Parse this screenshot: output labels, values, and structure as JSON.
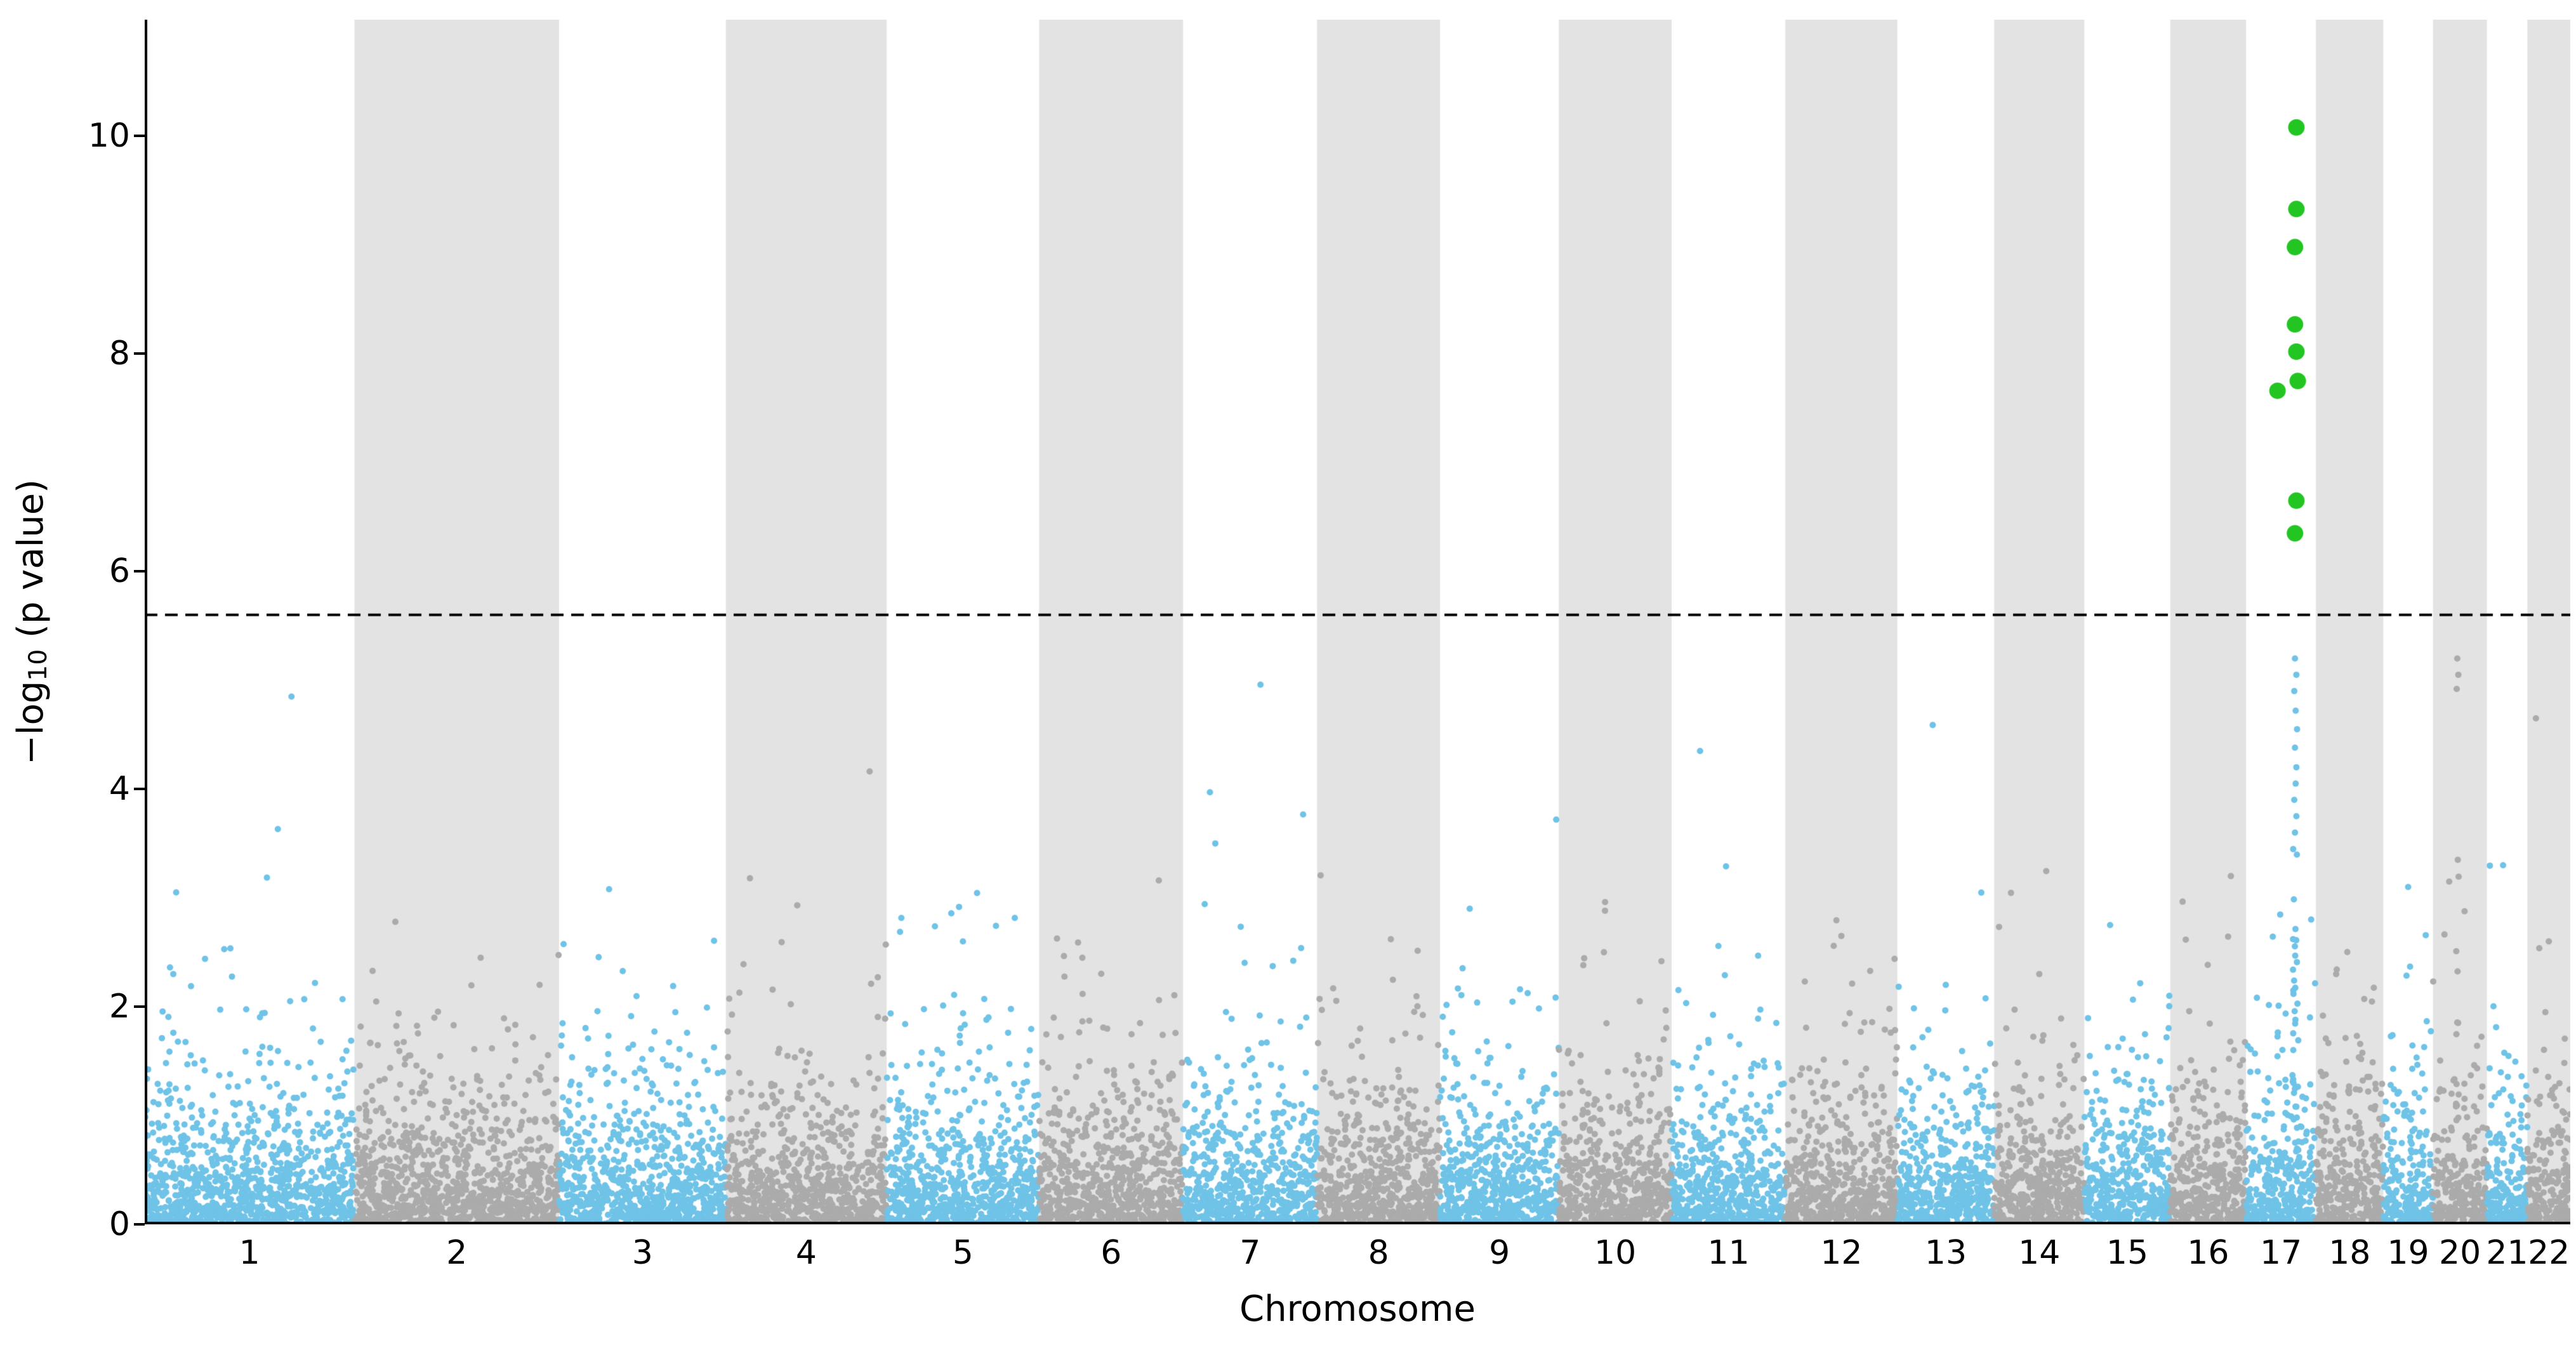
{
  "figure": {
    "xlabel": "Chromosome",
    "ylabel_prefix": "−log",
    "ylabel_sub": "10",
    "ylabel_suffix": " (p value)"
  },
  "chart_data": {
    "type": "scatter",
    "subtype": "manhattan",
    "title": "",
    "xlabel": "Chromosome",
    "ylabel": "-log10 (p value)",
    "ylim": [
      0,
      11.07
    ],
    "yticks": [
      0,
      2,
      4,
      6,
      8,
      10
    ],
    "grid": false,
    "legend": "none",
    "significance_threshold": 5.6,
    "threshold_line_style": "dashed",
    "colors": {
      "odd_chromosome_points": "#6fc3e7",
      "even_chromosome_points": "#ababab",
      "significant_points": "#22c522",
      "background_band": "#e3e3e3",
      "threshold_line": "#000000",
      "axis": "#000000"
    },
    "chromosomes": [
      {
        "label": "1",
        "size_mb": 249
      },
      {
        "label": "2",
        "size_mb": 243
      },
      {
        "label": "3",
        "size_mb": 198
      },
      {
        "label": "4",
        "size_mb": 191
      },
      {
        "label": "5",
        "size_mb": 181
      },
      {
        "label": "6",
        "size_mb": 171
      },
      {
        "label": "7",
        "size_mb": 159
      },
      {
        "label": "8",
        "size_mb": 146
      },
      {
        "label": "9",
        "size_mb": 141
      },
      {
        "label": "10",
        "size_mb": 134
      },
      {
        "label": "11",
        "size_mb": 135
      },
      {
        "label": "12",
        "size_mb": 133
      },
      {
        "label": "13",
        "size_mb": 115
      },
      {
        "label": "14",
        "size_mb": 107
      },
      {
        "label": "15",
        "size_mb": 102
      },
      {
        "label": "16",
        "size_mb": 90
      },
      {
        "label": "17",
        "size_mb": 83
      },
      {
        "label": "18",
        "size_mb": 80
      },
      {
        "label": "19",
        "size_mb": 59
      },
      {
        "label": "20",
        "size_mb": 64
      },
      {
        "label": "21",
        "size_mb": 48
      },
      {
        "label": "22",
        "size_mb": 51
      }
    ],
    "significant_points": [
      {
        "chromosome": "17",
        "rel_x": 0.72,
        "y": 10.08
      },
      {
        "chromosome": "17",
        "rel_x": 0.72,
        "y": 9.33
      },
      {
        "chromosome": "17",
        "rel_x": 0.7,
        "y": 8.98
      },
      {
        "chromosome": "17",
        "rel_x": 0.7,
        "y": 8.27
      },
      {
        "chromosome": "17",
        "rel_x": 0.72,
        "y": 8.02
      },
      {
        "chromosome": "17",
        "rel_x": 0.74,
        "y": 7.75
      },
      {
        "chromosome": "17",
        "rel_x": 0.45,
        "y": 7.66
      },
      {
        "chromosome": "17",
        "rel_x": 0.72,
        "y": 6.65
      },
      {
        "chromosome": "17",
        "rel_x": 0.7,
        "y": 6.35
      }
    ],
    "notable_points": [
      {
        "chromosome": "1",
        "rel_x": 0.7,
        "y": 4.85
      },
      {
        "chromosome": "1",
        "rel_x": 0.15,
        "y": 3.05
      },
      {
        "chromosome": "2",
        "rel_x": 0.2,
        "y": 2.78
      },
      {
        "chromosome": "3",
        "rel_x": 0.3,
        "y": 3.08
      },
      {
        "chromosome": "4",
        "rel_x": 0.15,
        "y": 3.18
      },
      {
        "chromosome": "5",
        "rel_x": 0.5,
        "y": 2.6
      },
      {
        "chromosome": "6",
        "rel_x": 0.3,
        "y": 2.45
      },
      {
        "chromosome": "7",
        "rel_x": 0.2,
        "y": 3.97
      },
      {
        "chromosome": "7",
        "rel_x": 0.24,
        "y": 3.5
      },
      {
        "chromosome": "8",
        "rel_x": 0.6,
        "y": 2.62
      },
      {
        "chromosome": "9",
        "rel_x": 0.25,
        "y": 2.9
      },
      {
        "chromosome": "10",
        "rel_x": 0.4,
        "y": 2.5
      },
      {
        "chromosome": "11",
        "rel_x": 0.25,
        "y": 4.35
      },
      {
        "chromosome": "12",
        "rel_x": 0.5,
        "y": 2.65
      },
      {
        "chromosome": "13",
        "rel_x": 0.5,
        "y": 2.2
      },
      {
        "chromosome": "14",
        "rel_x": 0.5,
        "y": 2.3
      },
      {
        "chromosome": "15",
        "rel_x": 0.3,
        "y": 2.75
      },
      {
        "chromosome": "16",
        "rel_x": 0.8,
        "y": 3.2
      },
      {
        "chromosome": "17",
        "rel_x": 0.7,
        "y": 5.2
      },
      {
        "chromosome": "17",
        "rel_x": 0.72,
        "y": 5.05
      },
      {
        "chromosome": "17",
        "rel_x": 0.69,
        "y": 4.9
      },
      {
        "chromosome": "17",
        "rel_x": 0.71,
        "y": 4.72
      },
      {
        "chromosome": "17",
        "rel_x": 0.73,
        "y": 4.55
      },
      {
        "chromosome": "17",
        "rel_x": 0.7,
        "y": 4.38
      },
      {
        "chromosome": "17",
        "rel_x": 0.72,
        "y": 4.2
      },
      {
        "chromosome": "17",
        "rel_x": 0.71,
        "y": 4.05
      },
      {
        "chromosome": "17",
        "rel_x": 0.69,
        "y": 3.9
      },
      {
        "chromosome": "17",
        "rel_x": 0.72,
        "y": 3.75
      },
      {
        "chromosome": "17",
        "rel_x": 0.7,
        "y": 3.6
      },
      {
        "chromosome": "18",
        "rel_x": 0.3,
        "y": 2.3
      },
      {
        "chromosome": "19",
        "rel_x": 0.5,
        "y": 3.1
      },
      {
        "chromosome": "20",
        "rel_x": 0.45,
        "y": 5.2
      },
      {
        "chromosome": "20",
        "rel_x": 0.47,
        "y": 5.05
      },
      {
        "chromosome": "20",
        "rel_x": 0.44,
        "y": 4.92
      },
      {
        "chromosome": "20",
        "rel_x": 0.46,
        "y": 3.35
      },
      {
        "chromosome": "20",
        "rel_x": 0.3,
        "y": 3.15
      },
      {
        "chromosome": "21",
        "rel_x": 0.4,
        "y": 3.3
      },
      {
        "chromosome": "22",
        "rel_x": 0.2,
        "y": 4.65
      },
      {
        "chromosome": "22",
        "rel_x": 0.5,
        "y": 2.6
      }
    ],
    "noise": {
      "seed": 42,
      "points_per_mb": 4.3,
      "max_noise_y": 5.15,
      "clusters": [
        {
          "chromosome": "17",
          "rel_x_range": [
            0.67,
            0.75
          ],
          "count": 28,
          "y_range": [
            0.3,
            3.6
          ]
        },
        {
          "chromosome": "20",
          "rel_x_range": [
            0.42,
            0.48
          ],
          "count": 10,
          "y_range": [
            0.5,
            3.2
          ]
        }
      ]
    }
  }
}
